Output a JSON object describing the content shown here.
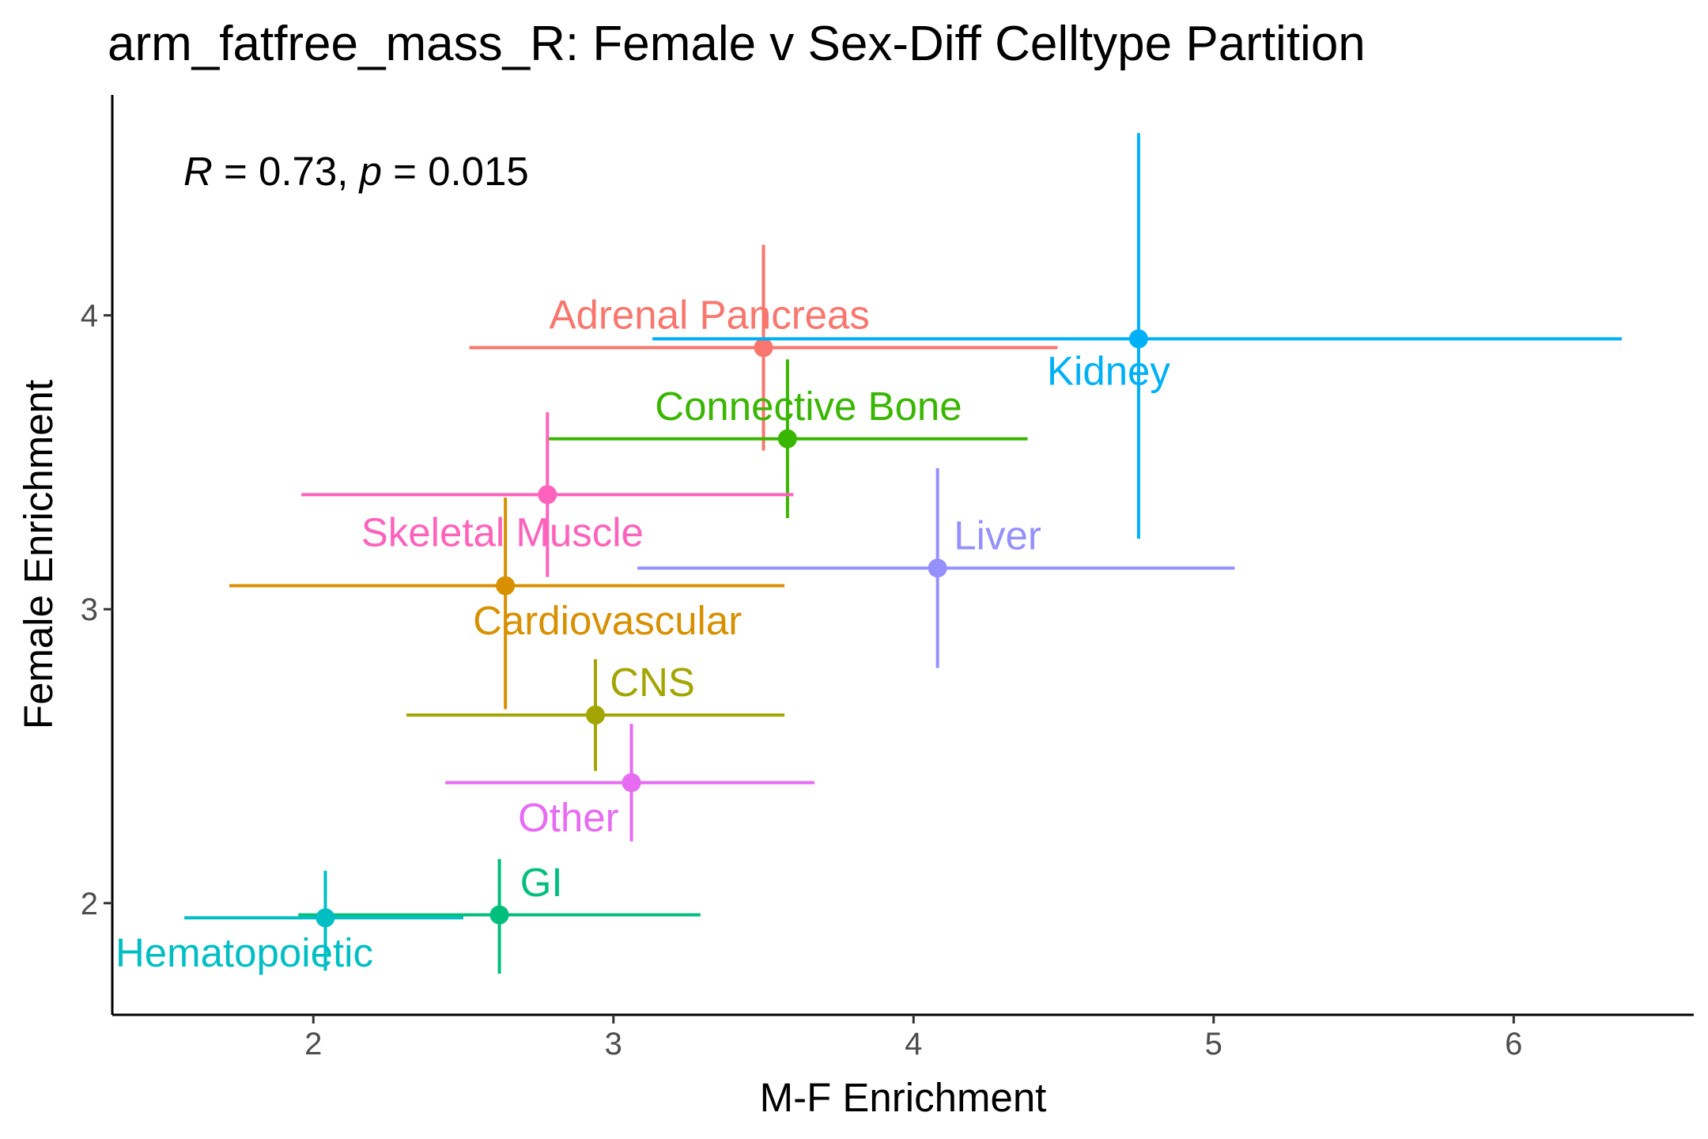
{
  "chart_data": {
    "type": "scatter",
    "title": "arm_fatfree_mass_R: Female v Sex-Diff Celltype Partition",
    "xlabel": "M-F Enrichment",
    "ylabel": "Female Enrichment",
    "xlim": [
      1.33,
      6.6
    ],
    "ylim": [
      1.62,
      4.75
    ],
    "xticks": [
      2,
      3,
      4,
      5,
      6
    ],
    "yticks": [
      2,
      3,
      4
    ],
    "xtick_labels": [
      "2",
      "3",
      "4",
      "5",
      "6"
    ],
    "ytick_labels": [
      "2",
      "3",
      "4"
    ],
    "grid": false,
    "legend": "none",
    "annotation": {
      "R_symbol": "R",
      "R_text": " = 0.73, ",
      "p_symbol": "p",
      "p_text": " = 0.015"
    },
    "points": [
      {
        "name": "Adrenal Pancreas",
        "x": 3.5,
        "y": 3.89,
        "xmin": 2.52,
        "xmax": 4.48,
        "ymin": 3.54,
        "ymax": 4.24,
        "color": "#F8766D",
        "label_x": 3.32,
        "label_y": 4.0
      },
      {
        "name": "Kidney",
        "x": 4.75,
        "y": 3.92,
        "xmin": 3.13,
        "xmax": 6.36,
        "ymin": 3.24,
        "ymax": 4.62,
        "color": "#00B0F6",
        "label_x": 4.65,
        "label_y": 3.81
      },
      {
        "name": "Connective Bone",
        "x": 3.58,
        "y": 3.58,
        "xmin": 2.78,
        "xmax": 4.38,
        "ymin": 3.31,
        "ymax": 3.85,
        "color": "#39B600",
        "label_x": 3.65,
        "label_y": 3.69
      },
      {
        "name": "Skeletal Muscle",
        "x": 2.78,
        "y": 3.39,
        "xmin": 1.96,
        "xmax": 3.6,
        "ymin": 3.11,
        "ymax": 3.67,
        "color": "#FF62BC",
        "label_x": 2.63,
        "label_y": 3.26
      },
      {
        "name": "Liver",
        "x": 4.08,
        "y": 3.14,
        "xmin": 3.08,
        "xmax": 5.07,
        "ymin": 2.8,
        "ymax": 3.48,
        "color": "#9590FF",
        "label_x": 4.28,
        "label_y": 3.25
      },
      {
        "name": "Cardiovascular",
        "x": 2.64,
        "y": 3.08,
        "xmin": 1.72,
        "xmax": 3.57,
        "ymin": 2.66,
        "ymax": 3.38,
        "color": "#D89000",
        "label_x": 2.98,
        "label_y": 2.96
      },
      {
        "name": "CNS",
        "x": 2.94,
        "y": 2.64,
        "xmin": 2.31,
        "xmax": 3.57,
        "ymin": 2.45,
        "ymax": 2.83,
        "color": "#A3A500",
        "label_x": 3.13,
        "label_y": 2.75
      },
      {
        "name": "Other",
        "x": 3.06,
        "y": 2.41,
        "xmin": 2.44,
        "xmax": 3.67,
        "ymin": 2.21,
        "ymax": 2.61,
        "color": "#E76BF3",
        "label_x": 2.85,
        "label_y": 2.29
      },
      {
        "name": "GI",
        "x": 2.62,
        "y": 1.96,
        "xmin": 1.95,
        "xmax": 3.29,
        "ymin": 1.76,
        "ymax": 2.15,
        "color": "#00BF7D",
        "label_x": 2.76,
        "label_y": 2.07
      },
      {
        "name": "Hematopoietic",
        "x": 2.04,
        "y": 1.95,
        "xmin": 1.57,
        "xmax": 2.5,
        "ymin": 1.77,
        "ymax": 2.11,
        "color": "#00BFC4",
        "label_x": 1.77,
        "label_y": 1.83
      }
    ]
  }
}
